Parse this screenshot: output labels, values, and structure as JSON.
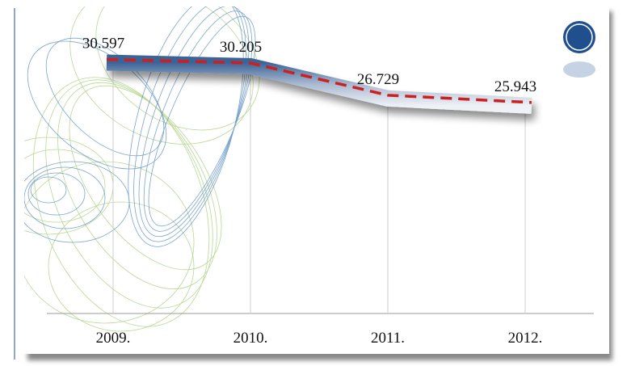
{
  "chart_data": {
    "type": "line",
    "categories": [
      "2009.",
      "2010.",
      "2011.",
      "2012."
    ],
    "values": [
      30.597,
      30.205,
      26.729,
      25.943
    ],
    "color": "#6f86a8",
    "trend_color": "#cc1f1f",
    "ylim": [
      3.5,
      33
    ]
  }
}
